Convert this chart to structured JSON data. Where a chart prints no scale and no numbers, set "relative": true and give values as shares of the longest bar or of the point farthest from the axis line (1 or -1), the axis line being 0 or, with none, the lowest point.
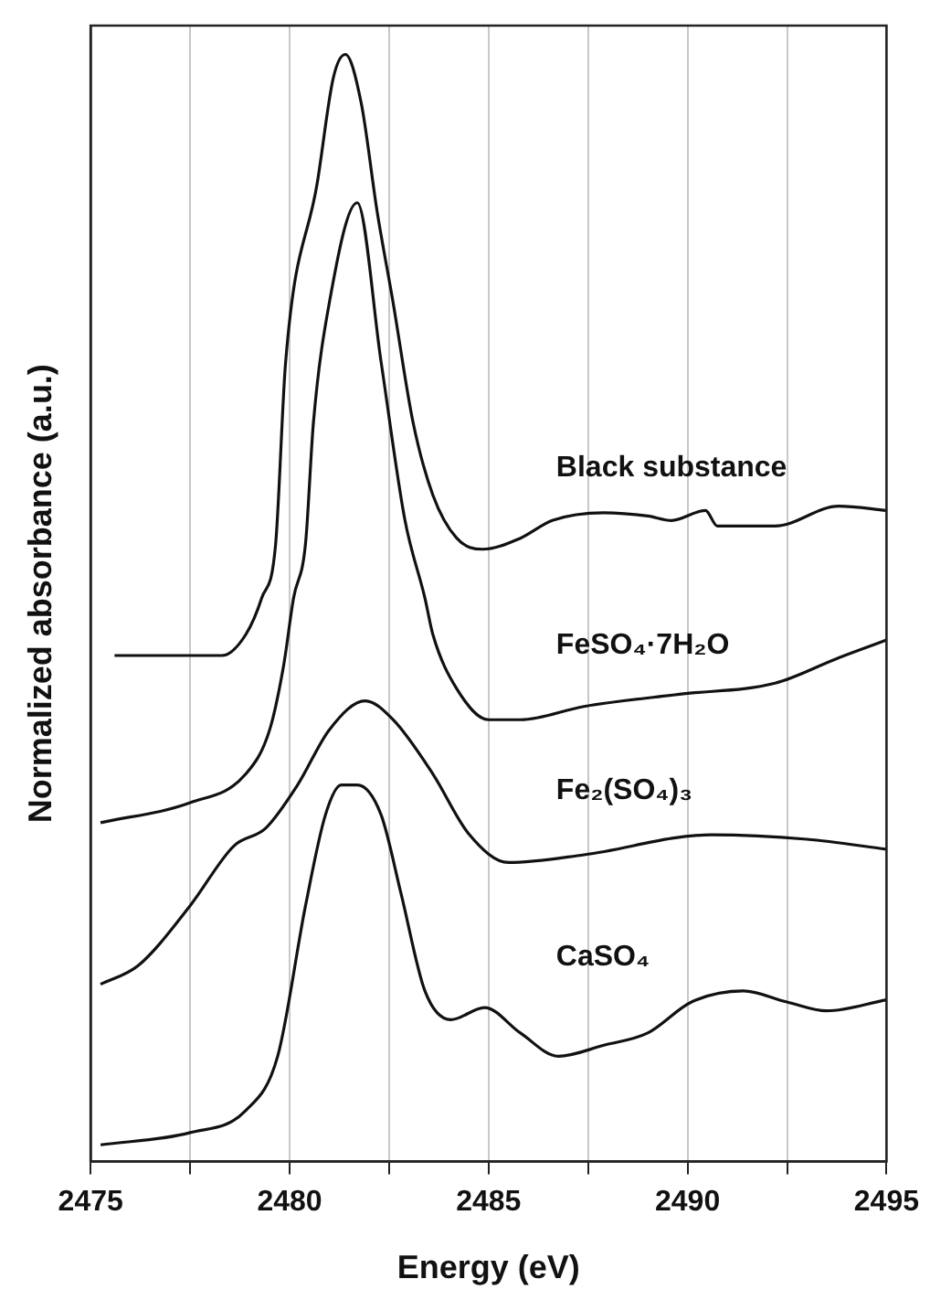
{
  "chart_data": {
    "type": "line",
    "relative": true,
    "xlabel": "Energy (eV)",
    "ylabel": "Normalized absorbance (a.u.)",
    "xlim": [
      2475,
      2495
    ],
    "xticks": [
      2475,
      {
        "value": 2477.5,
        "label": null
      },
      2480,
      {
        "value": 2482.5,
        "label": null
      },
      2485,
      {
        "value": 2487.5,
        "label": null
      },
      2490,
      {
        "value": 2492.5,
        "label": null
      },
      2495
    ],
    "grid": "x",
    "marker": "none",
    "line_style": "solid",
    "legend": false,
    "series": [
      {
        "name": "Black substance",
        "color": "#111111",
        "x": [
          2475.6,
          2478.3,
          2478.9,
          2479.3,
          2479.65,
          2479.9,
          2480.7,
          2481.1,
          2481.4,
          2481.8,
          2482.2,
          2482.6,
          2483.1,
          2483.6,
          2484.2,
          2484.85,
          2485.8,
          2486.6,
          2487.9,
          2489.0,
          2489.6,
          2490.45,
          2490.75,
          2492.2,
          2493.8,
          2495
        ],
        "values": [
          0.457,
          0.457,
          0.476,
          0.509,
          0.558,
          0.722,
          0.885,
          0.979,
          1,
          0.956,
          0.858,
          0.776,
          0.668,
          0.602,
          0.563,
          0.553,
          0.563,
          0.579,
          0.586,
          0.583,
          0.579,
          0.588,
          0.574,
          0.574,
          0.592,
          0.588
        ]
      },
      {
        "name": "FeSO₄·7H₂O",
        "color": "#111111",
        "x": [
          2475.25,
          2477.5,
          2478.9,
          2479.5,
          2479.85,
          2480.1,
          2480.4,
          2480.6,
          2481.0,
          2481.7,
          2482.3,
          2482.9,
          2483.4,
          2483.6,
          2484.2,
          2485.0,
          2485.8,
          2487.4,
          2489.8,
          2492.2,
          2493.8,
          2495
        ],
        "values": [
          0.306,
          0.324,
          0.35,
          0.39,
          0.448,
          0.509,
          0.558,
          0.668,
          0.776,
          0.866,
          0.722,
          0.579,
          0.509,
          0.476,
          0.427,
          0.399,
          0.399,
          0.411,
          0.422,
          0.432,
          0.455,
          0.471
        ]
      },
      {
        "name": "Fe₂(SO₄)₃",
        "color": "#111111",
        "x": [
          2475.25,
          2476.2,
          2477.5,
          2478.6,
          2479.4,
          2480.2,
          2481.0,
          2481.9,
          2482.6,
          2483.6,
          2484.5,
          2485.5,
          2487.4,
          2490.6,
          2493.0,
          2495
        ],
        "values": [
          0.16,
          0.177,
          0.231,
          0.285,
          0.301,
          0.34,
          0.39,
          0.416,
          0.399,
          0.35,
          0.296,
          0.27,
          0.277,
          0.295,
          0.291,
          0.282
        ]
      },
      {
        "name": "CaSO₄",
        "color": "#111111",
        "x": [
          2475.25,
          2477.5,
          2478.9,
          2479.7,
          2480.4,
          2480.9,
          2481.3,
          2481.7,
          2482.3,
          2482.8,
          2483.4,
          2484.05,
          2484.9,
          2485.8,
          2486.75,
          2487.9,
          2489.0,
          2490.1,
          2491.4,
          2492.5,
          2493.5,
          2495
        ],
        "values": [
          0.015,
          0.026,
          0.046,
          0.095,
          0.231,
          0.313,
          0.34,
          0.34,
          0.313,
          0.242,
          0.154,
          0.128,
          0.139,
          0.116,
          0.095,
          0.105,
          0.116,
          0.144,
          0.154,
          0.144,
          0.136,
          0.146
        ]
      }
    ]
  }
}
